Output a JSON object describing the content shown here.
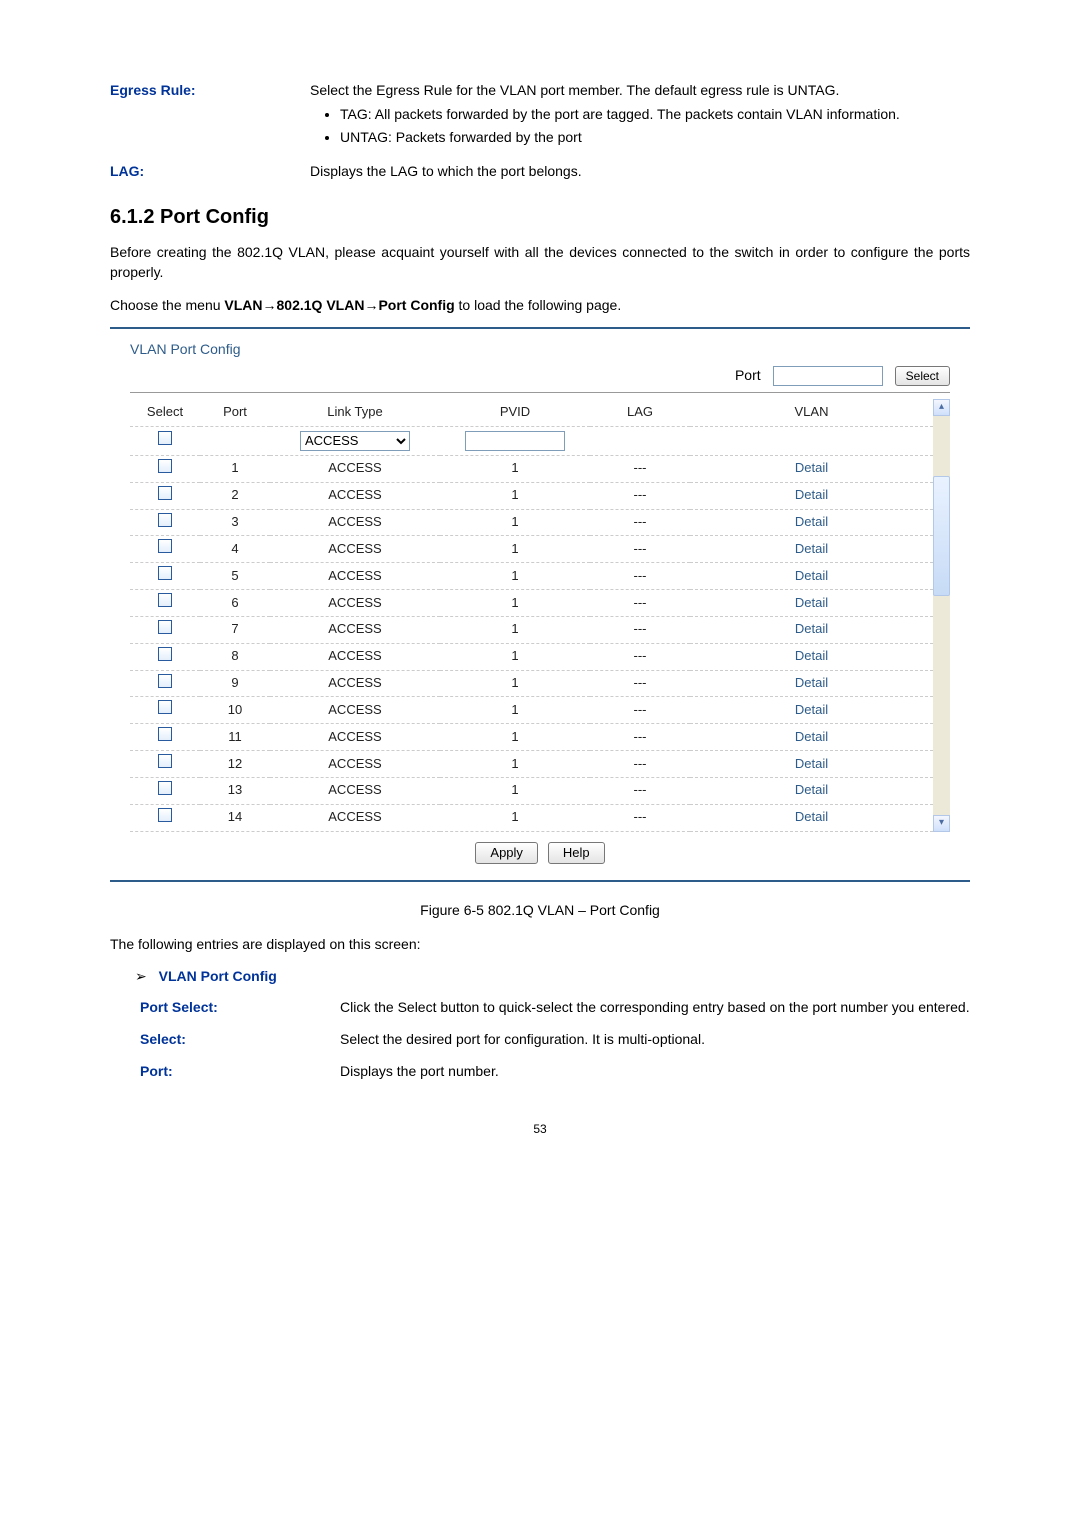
{
  "top_definitions": [
    {
      "label": "Egress Rule:",
      "text": "Select the Egress Rule for the VLAN port member. The default egress rule is UNTAG.",
      "bullets": [
        "TAG: All packets forwarded by the port are tagged. The packets contain VLAN information.",
        "UNTAG: Packets forwarded by the port"
      ]
    },
    {
      "label": "LAG:",
      "text": "Displays the LAG to which the port belongs.",
      "bullets": []
    }
  ],
  "section_heading": "6.1.2 Port Config",
  "intro_para": "Before creating the 802.1Q VLAN, please acquaint yourself with all the devices connected to the switch in order to configure the ports properly.",
  "menu_prefix": "Choose the menu ",
  "menu_path": "VLAN→802.1Q VLAN→Port Config",
  "menu_suffix": " to load the following page.",
  "panel": {
    "title": "VLAN Port Config",
    "port_label": "Port",
    "select_btn": "Select",
    "headers": {
      "select": "Select",
      "port": "Port",
      "link_type": "Link Type",
      "pvid": "PVID",
      "lag": "LAG",
      "vlan": "VLAN"
    },
    "filter_link_type": "ACCESS",
    "rows": [
      {
        "port": "1",
        "link_type": "ACCESS",
        "pvid": "1",
        "lag": "---",
        "vlan": "Detail"
      },
      {
        "port": "2",
        "link_type": "ACCESS",
        "pvid": "1",
        "lag": "---",
        "vlan": "Detail"
      },
      {
        "port": "3",
        "link_type": "ACCESS",
        "pvid": "1",
        "lag": "---",
        "vlan": "Detail"
      },
      {
        "port": "4",
        "link_type": "ACCESS",
        "pvid": "1",
        "lag": "---",
        "vlan": "Detail"
      },
      {
        "port": "5",
        "link_type": "ACCESS",
        "pvid": "1",
        "lag": "---",
        "vlan": "Detail"
      },
      {
        "port": "6",
        "link_type": "ACCESS",
        "pvid": "1",
        "lag": "---",
        "vlan": "Detail"
      },
      {
        "port": "7",
        "link_type": "ACCESS",
        "pvid": "1",
        "lag": "---",
        "vlan": "Detail"
      },
      {
        "port": "8",
        "link_type": "ACCESS",
        "pvid": "1",
        "lag": "---",
        "vlan": "Detail"
      },
      {
        "port": "9",
        "link_type": "ACCESS",
        "pvid": "1",
        "lag": "---",
        "vlan": "Detail"
      },
      {
        "port": "10",
        "link_type": "ACCESS",
        "pvid": "1",
        "lag": "---",
        "vlan": "Detail"
      },
      {
        "port": "11",
        "link_type": "ACCESS",
        "pvid": "1",
        "lag": "---",
        "vlan": "Detail"
      },
      {
        "port": "12",
        "link_type": "ACCESS",
        "pvid": "1",
        "lag": "---",
        "vlan": "Detail"
      },
      {
        "port": "13",
        "link_type": "ACCESS",
        "pvid": "1",
        "lag": "---",
        "vlan": "Detail"
      },
      {
        "port": "14",
        "link_type": "ACCESS",
        "pvid": "1",
        "lag": "---",
        "vlan": "Detail"
      }
    ],
    "apply_label": "Apply",
    "help_label": "Help"
  },
  "figure_caption": "Figure 6-5 802.1Q VLAN – Port Config",
  "entries_intro": "The following entries are displayed on this screen:",
  "sub_heading": "VLAN Port Config",
  "bottom_definitions": [
    {
      "label": "Port Select:",
      "text": "Click the Select button to quick-select the corresponding entry based on the port number you entered."
    },
    {
      "label": "Select:",
      "text": "Select the desired port for configuration. It is multi-optional."
    },
    {
      "label": "Port:",
      "text": "Displays the port number."
    }
  ],
  "page_number": "53",
  "colors": {
    "label_color": "#003399",
    "panel_border": "#2e5c8a",
    "link_color": "#2e5c8a"
  }
}
